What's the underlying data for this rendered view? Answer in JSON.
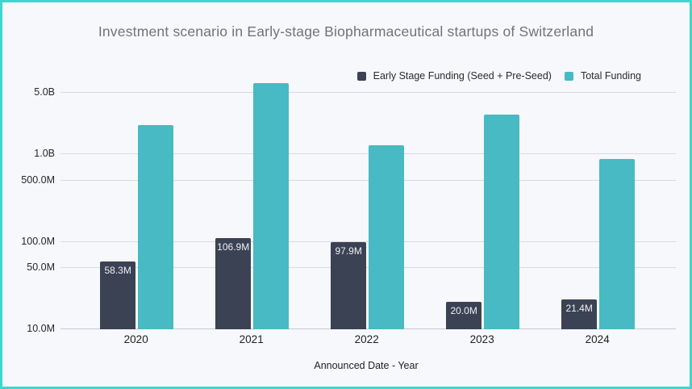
{
  "title": "Investment scenario in Early-stage Biopharmaceutical startups of Switzerland",
  "legend": {
    "items": [
      {
        "label": "Early Stage Funding (Seed + Pre-Seed)",
        "color": "#3b4254"
      },
      {
        "label": "Total Funding",
        "color": "#47bac3"
      }
    ]
  },
  "colors": {
    "border": "#3cd7d1",
    "background": "#f6f8fc",
    "early_stage_bar": "#3b4254",
    "total_bar": "#47bac3",
    "gridline": "#d8dadd",
    "axis_line": "#c6c9ce",
    "title_text": "#737373",
    "tick_text": "#262626",
    "bar_label_text": "#eef0f2"
  },
  "chart_data": {
    "type": "bar",
    "title": "Investment scenario in Early-stage Biopharmaceutical startups of Switzerland",
    "categories": [
      "2020",
      "2021",
      "2022",
      "2023",
      "2024"
    ],
    "series": [
      {
        "name": "Early Stage Funding (Seed + Pre-Seed)",
        "unit": "USD millions",
        "values": [
          58.3,
          106.9,
          97.9,
          20.0,
          21.4
        ],
        "bar_labels": [
          "58.3M",
          "106.9M",
          "97.9M",
          "20.0M",
          "21.4M"
        ],
        "color": "#3b4254"
      },
      {
        "name": "Total Funding",
        "unit": "USD millions",
        "values": [
          2100,
          6300,
          1230,
          2780,
          860
        ],
        "bar_labels": [
          "",
          "",
          "",
          "",
          ""
        ],
        "color": "#47bac3"
      }
    ],
    "xlabel": "Announced Date - Year",
    "ylabel": "",
    "y_scale": "log",
    "y_min_millions": 10,
    "y_ticks": [
      {
        "label": "5.0B",
        "value_millions": 5000
      },
      {
        "label": "1.0B",
        "value_millions": 1000
      },
      {
        "label": "500.0M",
        "value_millions": 500
      },
      {
        "label": "100.0M",
        "value_millions": 100
      },
      {
        "label": "50.0M",
        "value_millions": 50
      },
      {
        "label": "10.0M",
        "value_millions": 10
      }
    ],
    "legend_position": "top-right",
    "grid": true
  }
}
